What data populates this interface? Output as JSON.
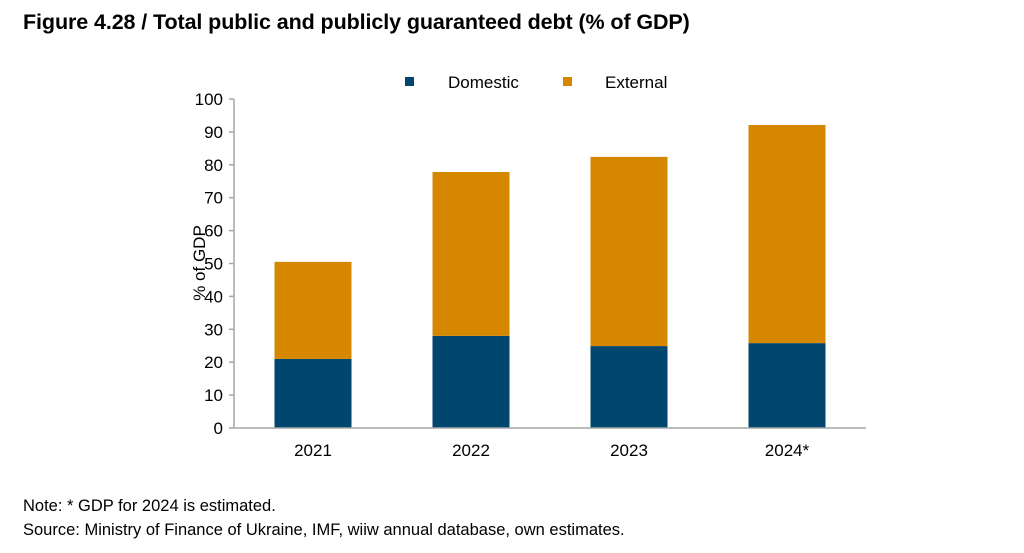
{
  "title": "Figure 4.28 / Total public and publicly guaranteed debt (% of GDP)",
  "notes": {
    "note": "Note: * GDP for 2024 is estimated.",
    "source": "Source: Ministry of Finance of Ukraine, IMF, wiiw annual database, own estimates."
  },
  "chart_data": {
    "type": "bar",
    "stacked": true,
    "title": "Total public and publicly guaranteed debt (% of GDP)",
    "xlabel": "",
    "ylabel": "% of GDP",
    "categories": [
      "2021",
      "2022",
      "2023",
      "2024*"
    ],
    "series": [
      {
        "name": "Domestic",
        "color": "#00466E",
        "values": [
          21.0,
          28.0,
          24.9,
          25.8
        ]
      },
      {
        "name": "External",
        "color": "#D58700",
        "values": [
          29.5,
          49.8,
          57.5,
          66.3
        ]
      }
    ],
    "ylim": [
      0,
      100
    ],
    "yticks": [
      0,
      10,
      20,
      30,
      40,
      50,
      60,
      70,
      80,
      90,
      100
    ],
    "grid": false,
    "legend_position": "top-center",
    "axis_color": "#A6A6A6"
  }
}
